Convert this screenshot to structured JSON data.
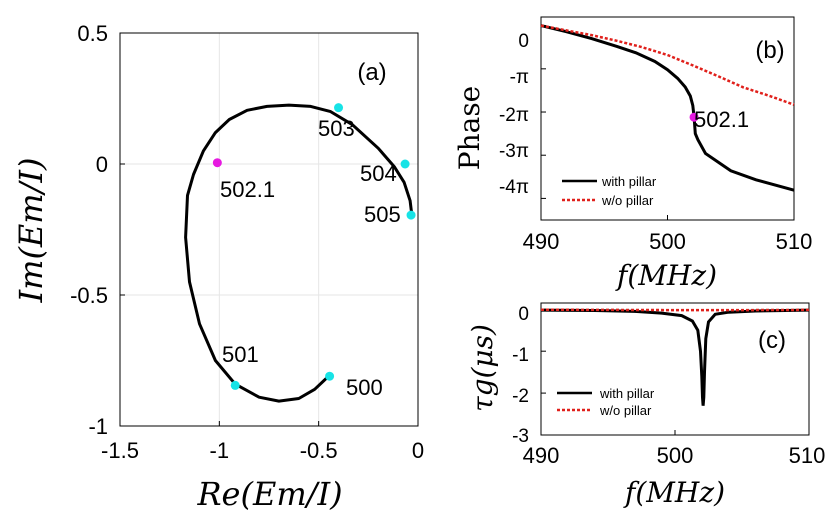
{
  "colors": {
    "line": "#000000",
    "dashed": "#e0201b",
    "marker_cyan": "#17e3e6",
    "marker_magenta": "#e619e0",
    "grid": "#e6e6e6"
  },
  "chart_data": [
    {
      "id": "a",
      "type": "line",
      "panel_label": "(a)",
      "xlabel": "Re(Em/I)",
      "ylabel": "Im(Em/I)",
      "xlim": [
        -1.5,
        0
      ],
      "ylim": [
        -1,
        0.5
      ],
      "xticks": [
        -1.5,
        -1,
        -0.5,
        0
      ],
      "xtick_labels": [
        "-1.5",
        "-1",
        "-0.5",
        "0"
      ],
      "yticks": [
        0.5,
        0,
        -0.5,
        -1
      ],
      "ytick_labels": [
        "0.5",
        "0",
        "-0.5",
        "-1"
      ],
      "grid": true,
      "curve": {
        "x": [
          -0.45,
          -0.52,
          -0.6,
          -0.7,
          -0.8,
          -0.92,
          -1.02,
          -1.1,
          -1.15,
          -1.17,
          -1.16,
          -1.13,
          -1.08,
          -1.02,
          -0.95,
          -0.86,
          -0.76,
          -0.65,
          -0.54,
          -0.44,
          -0.33,
          -0.2,
          -0.12,
          -0.07,
          -0.04,
          -0.03
        ],
        "y": [
          -0.81,
          -0.86,
          -0.895,
          -0.905,
          -0.89,
          -0.84,
          -0.75,
          -0.61,
          -0.45,
          -0.28,
          -0.12,
          -0.04,
          0.05,
          0.12,
          0.17,
          0.205,
          0.22,
          0.225,
          0.22,
          0.2,
          0.15,
          0.06,
          -0.01,
          -0.07,
          -0.14,
          -0.2
        ]
      },
      "markers": [
        {
          "label": "500",
          "x": -0.445,
          "y": -0.81,
          "color": "cyan"
        },
        {
          "label": "501",
          "x": -0.92,
          "y": -0.845,
          "color": "cyan"
        },
        {
          "label": "502.1",
          "x": -1.01,
          "y": 0.005,
          "color": "magenta"
        },
        {
          "label": "503",
          "x": -0.4,
          "y": 0.215,
          "color": "cyan"
        },
        {
          "label": "504",
          "x": -0.065,
          "y": 0.0,
          "color": "cyan"
        },
        {
          "label": "505",
          "x": -0.035,
          "y": -0.195,
          "color": "cyan"
        }
      ]
    },
    {
      "id": "b",
      "type": "line",
      "panel_label": "(b)",
      "xlabel": "f(MHz)",
      "ylabel": "Phase",
      "xlim": [
        490,
        510
      ],
      "ylim": [
        -4.5,
        0.2
      ],
      "xticks": [
        490,
        500,
        510
      ],
      "xtick_labels": [
        "490",
        "500",
        "510"
      ],
      "yticks": [
        0,
        -1,
        -2,
        -3,
        -4
      ],
      "ytick_labels": [
        "0",
        "-π",
        "-2π",
        "-3π",
        "-4π"
      ],
      "grid": false,
      "series": [
        {
          "name": "with pillar",
          "style": "solid",
          "x": [
            490,
            492,
            494,
            496,
            497.5,
            499,
            500,
            500.8,
            501.4,
            501.8,
            502.0,
            502.1,
            502.2,
            502.4,
            503,
            505,
            507,
            510
          ],
          "y": [
            0.0,
            -0.14,
            -0.3,
            -0.48,
            -0.63,
            -0.83,
            -1.02,
            -1.22,
            -1.42,
            -1.63,
            -1.85,
            -2.12,
            -2.5,
            -2.64,
            -2.96,
            -3.36,
            -3.57,
            -3.81
          ]
        },
        {
          "name": "w/o pillar",
          "style": "dashed",
          "x": [
            490,
            492,
            494,
            496,
            498,
            500,
            502,
            504,
            506,
            508,
            510
          ],
          "y": [
            0.0,
            -0.11,
            -0.22,
            -0.35,
            -0.5,
            -0.68,
            -0.92,
            -1.17,
            -1.43,
            -1.62,
            -1.83
          ]
        }
      ],
      "markers": [
        {
          "label": "502.1",
          "x": 502.1,
          "y": -2.12,
          "color": "magenta"
        }
      ],
      "legend": {
        "position": "bottom-left",
        "entries": [
          "with pillar",
          "w/o pillar"
        ]
      }
    },
    {
      "id": "c",
      "type": "line",
      "panel_label": "(c)",
      "xlabel": "f(MHz)",
      "ylabel": "τg(μs)",
      "xlim": [
        490,
        510
      ],
      "ylim": [
        -3,
        0.15
      ],
      "xticks": [
        490,
        500,
        510
      ],
      "xtick_labels": [
        "490",
        "500",
        "510"
      ],
      "yticks": [
        0,
        -1,
        -2,
        -3
      ],
      "ytick_labels": [
        "0",
        "-1",
        "-2",
        "-3"
      ],
      "grid": false,
      "series": [
        {
          "name": "with pillar",
          "style": "solid",
          "x": [
            490,
            494,
            497,
            499,
            500.5,
            501.3,
            501.7,
            501.9,
            502.0,
            502.05,
            502.1,
            502.15,
            502.2,
            502.3,
            502.5,
            503,
            504,
            506,
            510
          ],
          "y": [
            -0.02,
            -0.03,
            -0.05,
            -0.09,
            -0.15,
            -0.28,
            -0.5,
            -1.0,
            -1.6,
            -2.1,
            -2.3,
            -2.1,
            -1.5,
            -0.7,
            -0.3,
            -0.12,
            -0.07,
            -0.04,
            -0.02
          ]
        },
        {
          "name": "w/o pillar",
          "style": "dashed",
          "x": [
            490,
            495,
            500,
            505,
            510
          ],
          "y": [
            -0.01,
            -0.015,
            -0.02,
            -0.02,
            -0.015
          ]
        }
      ],
      "legend": {
        "position": "bottom-left",
        "entries": [
          "with pillar",
          "w/o pillar"
        ]
      }
    }
  ]
}
